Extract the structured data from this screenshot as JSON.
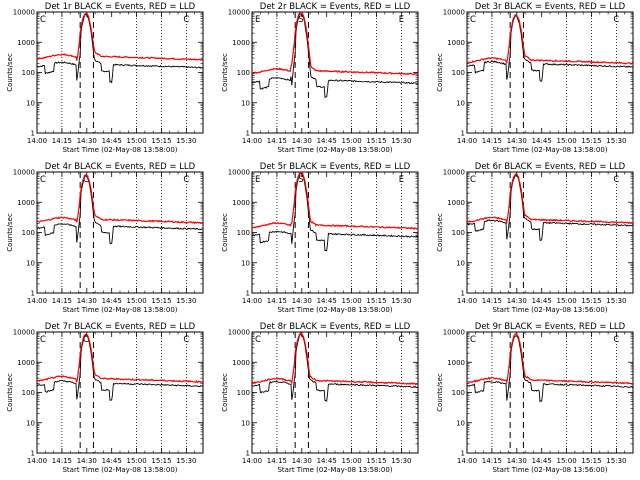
{
  "chart_data": {
    "type": "line",
    "layout": "3x3 grid",
    "yscale": "log",
    "ylim": [
      1,
      10000
    ],
    "yticks": [
      "1",
      "10",
      "100",
      "1000",
      "10000"
    ],
    "xticks": [
      "14:00",
      "14:15",
      "14:30",
      "14:45",
      "15:00",
      "15:15",
      "15:30"
    ],
    "xrange_min": [
      0,
      100
    ],
    "vline_dotted_min": [
      15,
      60,
      75,
      90
    ],
    "vline_dashed_min": [
      26,
      34
    ],
    "colors": {
      "events": "#000000",
      "lld": "#ff0000"
    },
    "panels": [
      {
        "title": "Det 1r BLACK = Events, RED = LLD",
        "xlabel": "Start Time (02-May-08 13:58:00)",
        "ylabel": "Counts/sec",
        "markers": [
          "C",
          "",
          "C"
        ],
        "series": [
          {
            "name": "Events",
            "base": 180
          },
          {
            "name": "LLD",
            "base": 330
          }
        ],
        "peak": 9000
      },
      {
        "title": "Det 2r BLACK = Events, RED = LLD",
        "xlabel": "Start Time (02-May-08 13:58:00)",
        "ylabel": "Counts/sec",
        "markers": [
          "E",
          "S",
          "E"
        ],
        "series": [
          {
            "name": "Events",
            "base": 55
          },
          {
            "name": "LLD",
            "base": 110
          }
        ],
        "peak": 10000
      },
      {
        "title": "Det 3r BLACK = Events, RED = LLD",
        "xlabel": "Start Time (02-May-08 13:58:00)",
        "ylabel": "Counts/sec",
        "markers": [
          "C",
          "",
          "C"
        ],
        "series": [
          {
            "name": "Events",
            "base": 190
          },
          {
            "name": "LLD",
            "base": 250
          }
        ],
        "peak": 8000
      },
      {
        "title": "Det 4r BLACK = Events, RED = LLD",
        "xlabel": "Start Time (02-May-08 13:58:00)",
        "ylabel": "Counts/sec",
        "markers": [
          "C",
          "C",
          "C"
        ],
        "series": [
          {
            "name": "Events",
            "base": 160
          },
          {
            "name": "LLD",
            "base": 260
          }
        ],
        "peak": 8000
      },
      {
        "title": "Det 5r BLACK = Events, RED = LLD",
        "xlabel": "Start Time (02-May-08 13:58:00)",
        "ylabel": "Counts/sec",
        "markers": [
          "E",
          "S",
          "E"
        ],
        "series": [
          {
            "name": "Events",
            "base": 90
          },
          {
            "name": "LLD",
            "base": 170
          }
        ],
        "peak": 10000
      },
      {
        "title": "Det 6r BLACK = Events, RED = LLD",
        "xlabel": "Start Time (02-May-08 13:56:00)",
        "ylabel": "Counts/sec",
        "markers": [
          "C",
          "",
          "C"
        ],
        "series": [
          {
            "name": "Events",
            "base": 210
          },
          {
            "name": "LLD",
            "base": 260
          }
        ],
        "peak": 8500
      },
      {
        "title": "Det 7r BLACK = Events, RED = LLD",
        "xlabel": "Start Time (02-May-08 13:58:00)",
        "ylabel": "Counts/sec",
        "markers": [
          "C",
          "C",
          "C"
        ],
        "series": [
          {
            "name": "Events",
            "base": 200
          },
          {
            "name": "LLD",
            "base": 280
          }
        ],
        "peak": 8500
      },
      {
        "title": "Det 8r BLACK = Events, RED = LLD",
        "xlabel": "Start Time (02-May-08 13:58:00)",
        "ylabel": "Counts/sec",
        "markers": [
          "C",
          "",
          "C"
        ],
        "series": [
          {
            "name": "Events",
            "base": 190
          },
          {
            "name": "LLD",
            "base": 240
          }
        ],
        "peak": 9000
      },
      {
        "title": "Det 9r BLACK = Events, RED = LLD",
        "xlabel": "Start Time (02-May-08 13:56:00)",
        "ylabel": "Counts/sec",
        "markers": [
          "C",
          "",
          "C"
        ],
        "series": [
          {
            "name": "Events",
            "base": 190
          },
          {
            "name": "LLD",
            "base": 250
          }
        ],
        "peak": 8500
      }
    ]
  }
}
